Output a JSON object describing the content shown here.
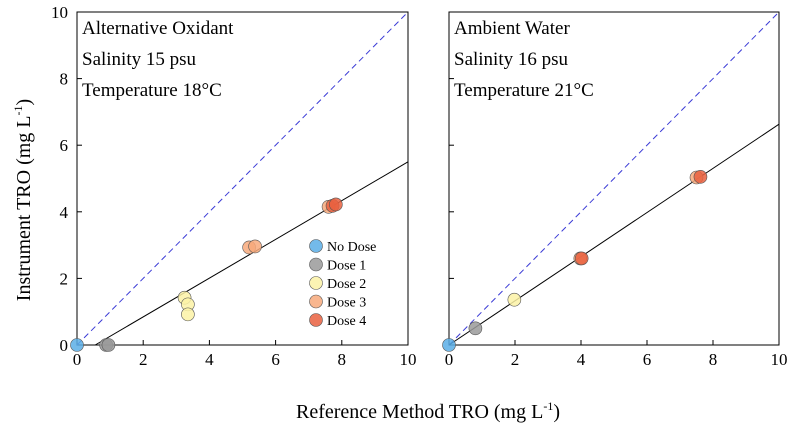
{
  "chart_data": {
    "type": "scatter",
    "xlabel": "Reference Method TRO (mg L",
    "xlabel_sup": "-1",
    "xlabel_end": ")",
    "ylabel": "Instrument TRO (mg L",
    "ylabel_sup": "-1",
    "ylabel_end": ")",
    "xlim": [
      0,
      10
    ],
    "ylim": [
      0,
      10
    ],
    "xticks": [
      0,
      2,
      4,
      6,
      8,
      10
    ],
    "yticks": [
      0,
      2,
      4,
      6,
      8,
      10
    ],
    "legend": {
      "placement": "lower-right of left panel",
      "entries": [
        {
          "name": "No Dose",
          "color": "#5aaee6"
        },
        {
          "name": "Dose 1",
          "color": "#9a9a9a"
        },
        {
          "name": "Dose 2",
          "color": "#fbf2a6"
        },
        {
          "name": "Dose 3",
          "color": "#f7a97b"
        },
        {
          "name": "Dose 4",
          "color": "#e9603f"
        }
      ]
    },
    "panels": [
      {
        "title_lines": [
          "Alternative Oxidant",
          "Salinity 15 psu",
          "Temperature 18°C"
        ],
        "fit_line": {
          "x": [
            0.55,
            10
          ],
          "y": [
            0,
            5.5
          ]
        },
        "one_to_one": true,
        "series": [
          {
            "name": "No Dose",
            "points": [
              [
                0.0,
                0.0
              ]
            ]
          },
          {
            "name": "Dose 1",
            "points": [
              [
                0.88,
                0.0
              ],
              [
                0.95,
                0.0
              ]
            ]
          },
          {
            "name": "Dose 2",
            "points": [
              [
                3.25,
                1.42
              ],
              [
                3.35,
                1.22
              ],
              [
                3.35,
                0.92
              ]
            ]
          },
          {
            "name": "Dose 3",
            "points": [
              [
                5.2,
                2.93
              ],
              [
                5.38,
                2.96
              ],
              [
                7.6,
                4.15
              ]
            ]
          },
          {
            "name": "Dose 4",
            "points": [
              [
                7.72,
                4.18
              ],
              [
                7.82,
                4.22
              ]
            ]
          }
        ]
      },
      {
        "title_lines": [
          "Ambient Water",
          "Salinity 16 psu",
          "Temperature 21°C"
        ],
        "fit_line": {
          "x": [
            0.0,
            10
          ],
          "y": [
            0.0,
            6.63
          ]
        },
        "one_to_one": true,
        "series": [
          {
            "name": "No Dose",
            "points": [
              [
                0.0,
                0.0
              ]
            ]
          },
          {
            "name": "Dose 1",
            "points": [
              [
                0.8,
                0.5
              ]
            ]
          },
          {
            "name": "Dose 2",
            "points": [
              [
                1.98,
                1.36
              ]
            ]
          },
          {
            "name": "Dose 3",
            "points": [
              [
                3.98,
                2.6
              ],
              [
                7.5,
                5.03
              ]
            ]
          },
          {
            "name": "Dose 4",
            "points": [
              [
                4.02,
                2.6
              ],
              [
                7.62,
                5.05
              ]
            ]
          }
        ]
      }
    ]
  }
}
